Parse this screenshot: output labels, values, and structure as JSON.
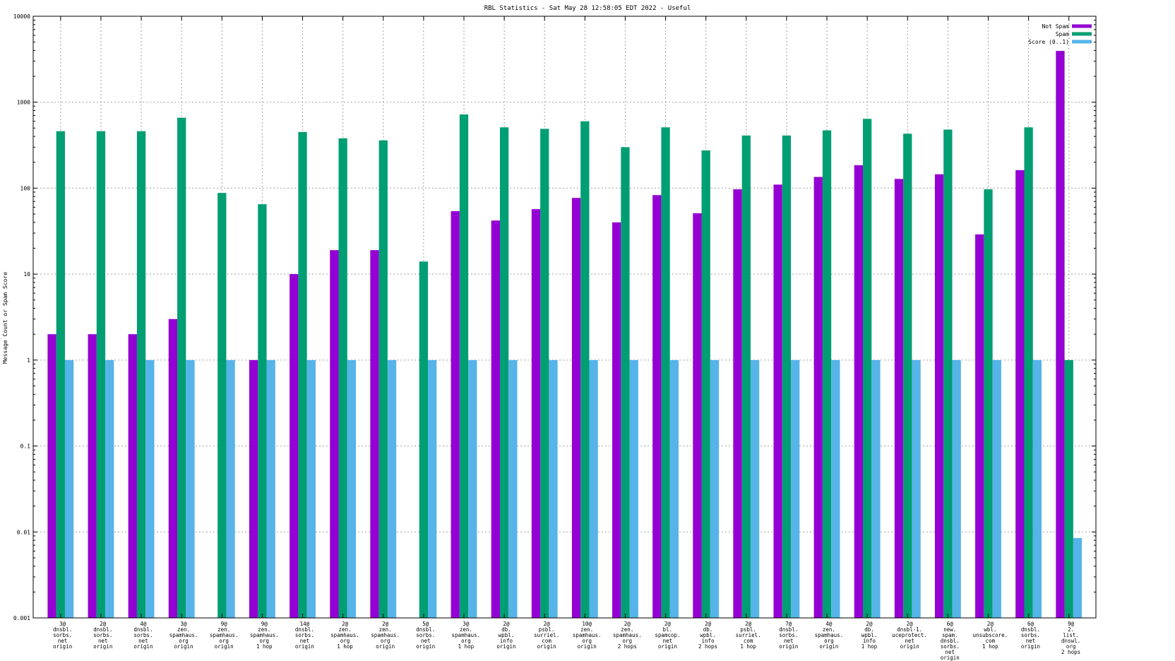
{
  "chart_data": {
    "type": "bar",
    "title": "RBL Statistics - Sat May 28 12:58:05 EDT 2022 - Useful",
    "xlabel": "",
    "ylabel": "Message Count or Spam Score",
    "yscale": "log",
    "ylim": [
      0.001,
      10000
    ],
    "yticks": [
      "0.001",
      "0.01",
      "0.1",
      "1",
      "10",
      "100",
      "1000",
      "10000"
    ],
    "grid": true,
    "legend_position": "top-right",
    "categories": [
      [
        "3@",
        "dnsbl.",
        "sorbs.",
        "net",
        "origin"
      ],
      [
        "2@",
        "dnsbl.",
        "sorbs.",
        "net",
        "origin"
      ],
      [
        "4@",
        "dnsbl.",
        "sorbs.",
        "net",
        "origin"
      ],
      [
        "3@",
        "zen.",
        "spamhaus.",
        "org",
        "origin"
      ],
      [
        "9@",
        "zen.",
        "spamhaus.",
        "org",
        "origin"
      ],
      [
        "9@",
        "zen.",
        "spamhaus.",
        "org",
        "1 hop"
      ],
      [
        "14@",
        "dnsbl.",
        "sorbs.",
        "net",
        "origin"
      ],
      [
        "2@",
        "zen.",
        "spamhaus.",
        "org",
        "1 hop"
      ],
      [
        "2@",
        "zen.",
        "spamhaus.",
        "org",
        "origin"
      ],
      [
        "5@",
        "dnsbl.",
        "sorbs.",
        "net",
        "origin"
      ],
      [
        "3@",
        "zen.",
        "spamhaus.",
        "org",
        "1 hop"
      ],
      [
        "2@",
        "db.",
        "wpbl.",
        "info",
        "origin"
      ],
      [
        "2@",
        "psbl.",
        "surriel.",
        "com",
        "origin"
      ],
      [
        "10@",
        "zen.",
        "spamhaus.",
        "org",
        "origin"
      ],
      [
        "2@",
        "zen.",
        "spamhaus.",
        "org",
        "2 hops"
      ],
      [
        "2@",
        "bl.",
        "spamcop.",
        "net",
        "origin"
      ],
      [
        "2@",
        "db.",
        "wpbl.",
        "info",
        "2 hops"
      ],
      [
        "2@",
        "psbl.",
        "surriel.",
        "com",
        "1 hop"
      ],
      [
        "7@",
        "dnsbl.",
        "sorbs.",
        "net",
        "origin"
      ],
      [
        "4@",
        "zen.",
        "spamhaus.",
        "org",
        "origin"
      ],
      [
        "2@",
        "db.",
        "wpbl.",
        "info",
        "1 hop"
      ],
      [
        "2@",
        "dnsbl-1.",
        "uceprotect.",
        "net",
        "origin"
      ],
      [
        "6@",
        "new.",
        "spam.",
        "dnsbl.",
        "sorbs.",
        "net",
        "origin"
      ],
      [
        "2@",
        "wbl.",
        "unsubscore.",
        "com",
        "1 hop"
      ],
      [
        "6@",
        "dnsbl.",
        "sorbs.",
        "net",
        "origin"
      ],
      [
        "9@",
        "2.",
        "list.",
        "dnswl.",
        "org",
        "2 hops"
      ]
    ],
    "series": [
      {
        "name": "Not Spam",
        "color": "#9400d3",
        "values": [
          2,
          2,
          2,
          3,
          0,
          1,
          10,
          19,
          19,
          0,
          54,
          42,
          57,
          77,
          40,
          83,
          51,
          97,
          110,
          135,
          185,
          128,
          145,
          29,
          162,
          3950
        ]
      },
      {
        "name": "Spam",
        "color": "#009e73",
        "values": [
          460,
          460,
          460,
          660,
          88,
          65,
          450,
          380,
          360,
          14,
          720,
          510,
          490,
          600,
          300,
          510,
          275,
          410,
          410,
          470,
          640,
          430,
          480,
          97,
          510,
          1
        ]
      },
      {
        "name": "Score (0..1)",
        "color": "#56b4e9",
        "values": [
          1,
          1,
          1,
          1,
          1,
          1,
          1,
          1,
          1,
          1,
          1,
          1,
          1,
          1,
          1,
          1,
          1,
          1,
          1,
          1,
          1,
          1,
          1,
          1,
          1,
          0.0085
        ]
      }
    ]
  }
}
